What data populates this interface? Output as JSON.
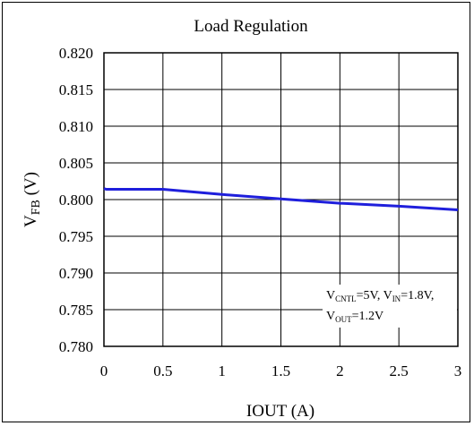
{
  "chart_data": {
    "type": "line",
    "title": "Load Regulation",
    "xlabel": "IOUT (A)",
    "ylabel": {
      "main": "V",
      "sub": "FB",
      "unit": " (V)"
    },
    "xlim": [
      0,
      3
    ],
    "ylim": [
      0.78,
      0.82
    ],
    "x_ticks": [
      "0",
      "0.5",
      "1",
      "1.5",
      "2",
      "2.5",
      "3"
    ],
    "y_ticks": [
      "0.820",
      "0.815",
      "0.810",
      "0.805",
      "0.800",
      "0.795",
      "0.790",
      "0.785",
      "0.780"
    ],
    "grid": true,
    "series": [
      {
        "color": "#1f1fdc",
        "x": [
          0,
          0.02,
          0.5,
          1.0,
          1.5,
          2.0,
          2.5,
          3.0
        ],
        "y": [
          0.8015,
          0.8014,
          0.8014,
          0.8007,
          0.8001,
          0.7995,
          0.7991,
          0.7986
        ]
      }
    ],
    "annotation": {
      "line1": [
        {
          "t": "V",
          "sub": false
        },
        {
          "t": "CNTL",
          "sub": true
        },
        {
          "t": "=5V, V",
          "sub": false
        },
        {
          "t": "IN",
          "sub": true
        },
        {
          "t": "=1.8V,",
          "sub": false
        }
      ],
      "line2": [
        {
          "t": "V",
          "sub": false
        },
        {
          "t": "OUT",
          "sub": true
        },
        {
          "t": "=1.2V",
          "sub": false
        }
      ]
    }
  }
}
